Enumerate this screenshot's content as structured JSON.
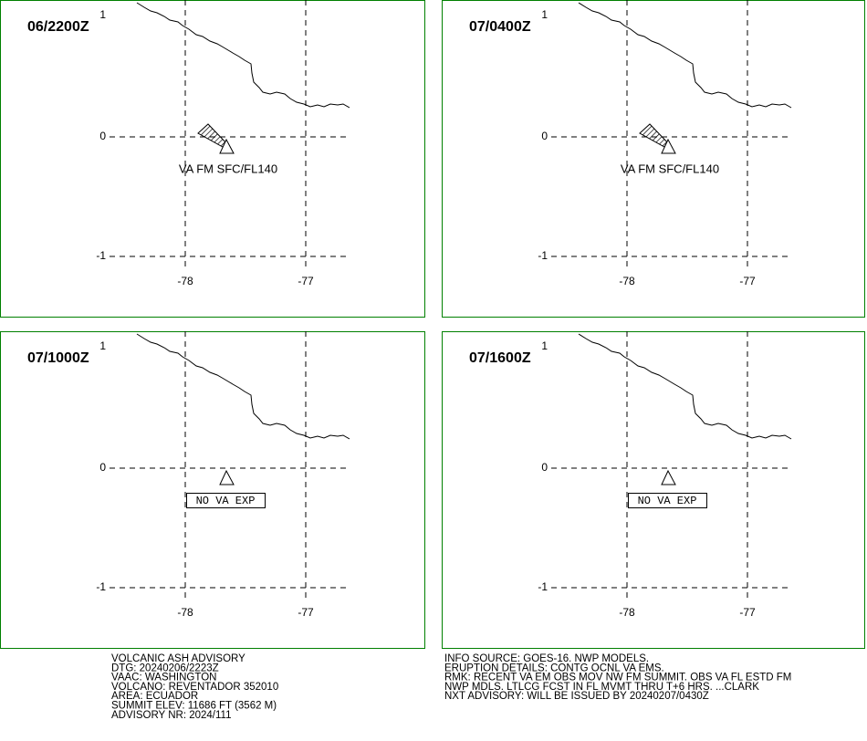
{
  "panels": [
    {
      "time": "06/2200Z",
      "label": "VA FM SFC/FL140"
    },
    {
      "time": "07/0400Z",
      "label": "VA FM SFC/FL140"
    },
    {
      "time": "07/1000Z",
      "label": "NO VA EXP"
    },
    {
      "time": "07/1600Z",
      "label": "NO VA EXP"
    }
  ],
  "lat_ticks": [
    1,
    0,
    -1
  ],
  "lon_ticks": [
    -78,
    -77
  ],
  "advisory_left": [
    "VOLCANIC ASH ADVISORY",
    "DTG: 20240206/2223Z",
    "VAAC: WASHINGTON",
    "VOLCANO: REVENTADOR 352010",
    "AREA: ECUADOR",
    "SUMMIT ELEV: 11686 FT (3562 M)",
    "ADVISORY NR: 2024/111"
  ],
  "advisory_right": [
    "INFO SOURCE: GOES-16. NWP MODELS.",
    "ERUPTION DETAILS: CONTG OCNL VA EMS.",
    "RMK: RECENT VA EM OBS MOV NW FM SUMMIT. OBS VA FL ESTD FM",
    "NWP MDLS. LTLCG FCST IN FL MVMT THRU T+6 HRS. ...CLARK",
    "NXT ADVISORY: WILL BE ISSUED BY 20240207/0430Z"
  ]
}
